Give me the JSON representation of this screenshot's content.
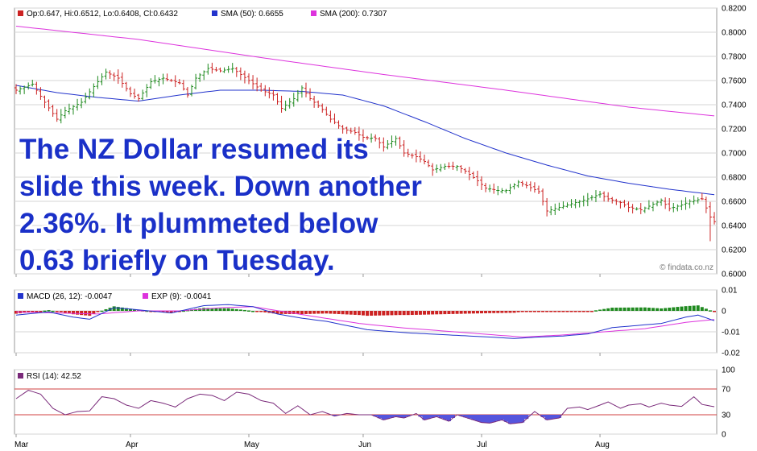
{
  "annotation": {
    "lines": [
      "The NZ Dollar resumed its",
      "slide this week. Down another",
      "2.36%. It plummeted below",
      "0.63 briefly on Tuesday."
    ],
    "color": "#1a30c8"
  },
  "watermark": "© findata.co.nz",
  "colors": {
    "up": "#1f8a1f",
    "down": "#cc2222",
    "sma50": "#2233cc",
    "sma200": "#dd33dd",
    "macd": "#2233cc",
    "exp": "#dd33dd",
    "rsi": "#7a2a7a",
    "rsi_fill": "#5555dd",
    "level_line": "#d04040",
    "grid": "#d6d6d6",
    "frame": "#999999"
  },
  "chart_data": [
    {
      "type": "ohlc",
      "legend": [
        {
          "label": "Op:0.647, Hi:0.6512, Lo:0.6408, Cl:0.6432",
          "color": "#cc2222"
        },
        {
          "label": "SMA (50): 0.6655",
          "color": "#2233cc"
        },
        {
          "label": "SMA (200): 0.7307",
          "color": "#dd33dd"
        }
      ],
      "y_ticks": [
        "0.6000",
        "0.6200",
        "0.6400",
        "0.6600",
        "0.6800",
        "0.7000",
        "0.7200",
        "0.7400",
        "0.7600",
        "0.7800",
        "0.8000",
        "0.8200"
      ],
      "ylim": [
        0.6,
        0.82
      ],
      "x_months": [
        "Mar",
        "Apr",
        "May",
        "Jun",
        "Jul",
        "Aug"
      ],
      "close_anchors": [
        [
          0,
          0.752
        ],
        [
          4,
          0.757
        ],
        [
          7,
          0.742
        ],
        [
          10,
          0.728
        ],
        [
          12,
          0.735
        ],
        [
          16,
          0.742
        ],
        [
          19,
          0.755
        ],
        [
          22,
          0.767
        ],
        [
          25,
          0.762
        ],
        [
          28,
          0.749
        ],
        [
          30,
          0.745
        ],
        [
          33,
          0.759
        ],
        [
          36,
          0.762
        ],
        [
          40,
          0.758
        ],
        [
          42,
          0.748
        ],
        [
          44,
          0.762
        ],
        [
          47,
          0.77
        ],
        [
          50,
          0.768
        ],
        [
          53,
          0.77
        ],
        [
          55,
          0.765
        ],
        [
          57,
          0.76
        ],
        [
          60,
          0.752
        ],
        [
          63,
          0.748
        ],
        [
          65,
          0.737
        ],
        [
          68,
          0.745
        ],
        [
          70,
          0.754
        ],
        [
          72,
          0.745
        ],
        [
          75,
          0.736
        ],
        [
          77,
          0.728
        ],
        [
          80,
          0.72
        ],
        [
          83,
          0.717
        ],
        [
          85,
          0.713
        ],
        [
          88,
          0.712
        ],
        [
          90,
          0.705
        ],
        [
          93,
          0.712
        ],
        [
          95,
          0.7
        ],
        [
          98,
          0.697
        ],
        [
          100,
          0.693
        ],
        [
          102,
          0.686
        ],
        [
          105,
          0.689
        ],
        [
          108,
          0.689
        ],
        [
          110,
          0.685
        ],
        [
          113,
          0.677
        ],
        [
          115,
          0.671
        ],
        [
          118,
          0.669
        ],
        [
          120,
          0.669
        ],
        [
          123,
          0.676
        ],
        [
          125,
          0.673
        ],
        [
          128,
          0.668
        ],
        [
          130,
          0.652
        ],
        [
          133,
          0.655
        ],
        [
          135,
          0.657
        ],
        [
          138,
          0.66
        ],
        [
          140,
          0.662
        ],
        [
          143,
          0.666
        ],
        [
          145,
          0.662
        ],
        [
          148,
          0.659
        ],
        [
          150,
          0.655
        ],
        [
          153,
          0.653
        ],
        [
          155,
          0.656
        ],
        [
          158,
          0.661
        ],
        [
          160,
          0.654
        ],
        [
          163,
          0.657
        ],
        [
          165,
          0.66
        ],
        [
          168,
          0.662
        ],
        [
          170,
          0.647
        ],
        [
          171,
          0.6432
        ]
      ],
      "sma50_anchors": [
        [
          0,
          0.756
        ],
        [
          10,
          0.75
        ],
        [
          20,
          0.746
        ],
        [
          30,
          0.743
        ],
        [
          40,
          0.748
        ],
        [
          50,
          0.752
        ],
        [
          60,
          0.752
        ],
        [
          70,
          0.751
        ],
        [
          80,
          0.748
        ],
        [
          90,
          0.739
        ],
        [
          100,
          0.726
        ],
        [
          110,
          0.712
        ],
        [
          120,
          0.7
        ],
        [
          130,
          0.69
        ],
        [
          140,
          0.681
        ],
        [
          150,
          0.675
        ],
        [
          160,
          0.67
        ],
        [
          171,
          0.6655
        ]
      ],
      "sma200_anchors": [
        [
          0,
          0.805
        ],
        [
          30,
          0.794
        ],
        [
          60,
          0.779
        ],
        [
          90,
          0.765
        ],
        [
          120,
          0.752
        ],
        [
          150,
          0.738
        ],
        [
          171,
          0.7307
        ]
      ],
      "n": 172
    },
    {
      "type": "line",
      "legend": [
        {
          "label": "MACD (26, 12): -0.0047",
          "color": "#2233cc"
        },
        {
          "label": "EXP (9): -0.0041",
          "color": "#dd33dd"
        }
      ],
      "y_ticks": [
        "0.01",
        "0",
        "-0.01",
        "-0.02"
      ],
      "ylim": [
        -0.02,
        0.01
      ],
      "macd_anchors": [
        [
          0,
          -0.002
        ],
        [
          8,
          -0.0005
        ],
        [
          14,
          -0.003
        ],
        [
          18,
          -0.004
        ],
        [
          24,
          0.0015
        ],
        [
          30,
          0.0005
        ],
        [
          38,
          -0.001
        ],
        [
          46,
          0.0025
        ],
        [
          52,
          0.003
        ],
        [
          58,
          0.002
        ],
        [
          64,
          -0.0015
        ],
        [
          70,
          -0.0035
        ],
        [
          76,
          -0.005
        ],
        [
          86,
          -0.009
        ],
        [
          96,
          -0.0105
        ],
        [
          106,
          -0.0115
        ],
        [
          116,
          -0.0125
        ],
        [
          122,
          -0.0132
        ],
        [
          128,
          -0.0125
        ],
        [
          134,
          -0.012
        ],
        [
          140,
          -0.011
        ],
        [
          146,
          -0.008
        ],
        [
          152,
          -0.007
        ],
        [
          158,
          -0.006
        ],
        [
          164,
          -0.003
        ],
        [
          167,
          -0.002
        ],
        [
          171,
          -0.0047
        ]
      ],
      "exp_anchors": [
        [
          0,
          -0.0005
        ],
        [
          10,
          -0.001
        ],
        [
          20,
          -0.0015
        ],
        [
          30,
          0.0
        ],
        [
          40,
          0.0
        ],
        [
          50,
          0.0015
        ],
        [
          58,
          0.002
        ],
        [
          66,
          -0.0005
        ],
        [
          74,
          -0.003
        ],
        [
          84,
          -0.006
        ],
        [
          94,
          -0.008
        ],
        [
          104,
          -0.0095
        ],
        [
          114,
          -0.011
        ],
        [
          124,
          -0.0125
        ],
        [
          134,
          -0.0115
        ],
        [
          144,
          -0.01
        ],
        [
          154,
          -0.0085
        ],
        [
          164,
          -0.0055
        ],
        [
          171,
          -0.0041
        ]
      ]
    },
    {
      "type": "line",
      "legend": [
        {
          "label": "RSI (14): 42.52",
          "color": "#7a2a7a"
        }
      ],
      "y_ticks": [
        "100",
        "70",
        "30",
        "0"
      ],
      "ylim": [
        0,
        100
      ],
      "levels": [
        70,
        30
      ],
      "rsi_anchors": [
        [
          0,
          55
        ],
        [
          3,
          68
        ],
        [
          6,
          62
        ],
        [
          9,
          40
        ],
        [
          12,
          30
        ],
        [
          15,
          35
        ],
        [
          18,
          36
        ],
        [
          21,
          58
        ],
        [
          24,
          55
        ],
        [
          27,
          45
        ],
        [
          30,
          40
        ],
        [
          33,
          52
        ],
        [
          36,
          48
        ],
        [
          39,
          42
        ],
        [
          42,
          55
        ],
        [
          45,
          62
        ],
        [
          48,
          60
        ],
        [
          51,
          52
        ],
        [
          54,
          65
        ],
        [
          57,
          62
        ],
        [
          60,
          52
        ],
        [
          63,
          48
        ],
        [
          66,
          32
        ],
        [
          69,
          44
        ],
        [
          72,
          30
        ],
        [
          75,
          35
        ],
        [
          78,
          28
        ],
        [
          81,
          32
        ],
        [
          84,
          30
        ],
        [
          87,
          30
        ],
        [
          90,
          22
        ],
        [
          93,
          27
        ],
        [
          95,
          25
        ],
        [
          98,
          32
        ],
        [
          100,
          22
        ],
        [
          103,
          27
        ],
        [
          106,
          20
        ],
        [
          108,
          30
        ],
        [
          111,
          24
        ],
        [
          114,
          18
        ],
        [
          116,
          17
        ],
        [
          119,
          22
        ],
        [
          121,
          16
        ],
        [
          124,
          18
        ],
        [
          127,
          35
        ],
        [
          130,
          22
        ],
        [
          133,
          25
        ],
        [
          135,
          40
        ],
        [
          138,
          42
        ],
        [
          140,
          38
        ],
        [
          143,
          45
        ],
        [
          145,
          50
        ],
        [
          148,
          40
        ],
        [
          150,
          45
        ],
        [
          153,
          47
        ],
        [
          155,
          42
        ],
        [
          158,
          48
        ],
        [
          160,
          45
        ],
        [
          163,
          43
        ],
        [
          166,
          58
        ],
        [
          168,
          46
        ],
        [
          171,
          42.52
        ]
      ]
    }
  ]
}
